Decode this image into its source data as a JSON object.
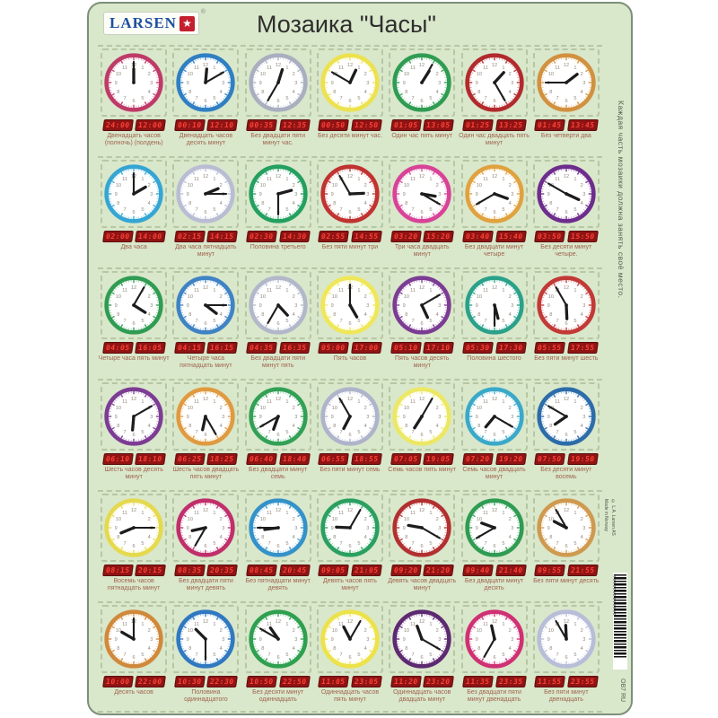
{
  "header": {
    "logo": "LARSEN",
    "logo_star": "★",
    "logo_reg": "®",
    "title": "Мозаика \"Часы\""
  },
  "side_note": "Каждая часть мозаики должна занять своё место.",
  "footer": {
    "credit_line1": "© L.A. Larsen AS",
    "credit_line2": "Made in Norway",
    "barcode_number": "7090052310690",
    "product_code": "OB7 RU"
  },
  "colors": {
    "board_bg": "#d9e7cb",
    "lcd_bg": "#8f1414",
    "lcd_digits": "#ff4136",
    "caption": "#a0644e"
  },
  "grid": {
    "rows": [
      {
        "cells": [
          {
            "time": "12:00",
            "lcd": [
              "24:00",
              "12:00"
            ],
            "caption": "Двенадцать часов (полночь) (полдень)",
            "rim": "#bf3a68"
          },
          {
            "time": "12:10",
            "lcd": [
              "00:10",
              "12:10"
            ],
            "caption": "Двенадцать часов десять минут",
            "rim": "#2f7fc2"
          },
          {
            "time": "12:35",
            "lcd": [
              "00:35",
              "12:35"
            ],
            "caption": "Без двадцати пяти минут час.",
            "rim": "#a9afbf"
          },
          {
            "time": "12:50",
            "lcd": [
              "00:50",
              "12:50"
            ],
            "caption": "Без десяти минут час.",
            "rim": "#ece24f"
          },
          {
            "time": "1:05",
            "lcd": [
              "01:05",
              "13:05"
            ],
            "caption": "Один час пять минут",
            "rim": "#2f9c52"
          },
          {
            "time": "1:25",
            "lcd": [
              "01:25",
              "13:25"
            ],
            "caption": "Один час двадцать пять минут",
            "rim": "#b22a2c"
          },
          {
            "time": "1:45",
            "lcd": [
              "01:45",
              "13:45"
            ],
            "caption": "Без четверти два",
            "rim": "#d2913f"
          }
        ]
      },
      {
        "cells": [
          {
            "time": "2:00",
            "lcd": [
              "02:00",
              "14:00"
            ],
            "caption": "Два часа",
            "rim": "#35a6d4"
          },
          {
            "time": "2:15",
            "lcd": [
              "02:15",
              "14:15"
            ],
            "caption": "Два часа пятнадцать минут",
            "rim": "#b9bdd3"
          },
          {
            "time": "2:30",
            "lcd": [
              "02:30",
              "14:30"
            ],
            "caption": "Половина третьего",
            "rim": "#23a05f"
          },
          {
            "time": "2:55",
            "lcd": [
              "02:55",
              "14:55"
            ],
            "caption": "Без пяти минут три",
            "rim": "#c03331"
          },
          {
            "time": "3:20",
            "lcd": [
              "03:20",
              "15:20"
            ],
            "caption": "Три часа двадцать минут",
            "rim": "#d84397"
          },
          {
            "time": "3:40",
            "lcd": [
              "03:40",
              "15:40"
            ],
            "caption": "Без двадцати минут четыре",
            "rim": "#e0a23e"
          },
          {
            "time": "3:50",
            "lcd": [
              "03:50",
              "15:50"
            ],
            "caption": "Без десяти минут четыре.",
            "rim": "#6d2d8d"
          }
        ]
      },
      {
        "cells": [
          {
            "time": "4:05",
            "lcd": [
              "04:05",
              "16:05"
            ],
            "caption": "Четыре часа пять минут",
            "rim": "#2f9c52"
          },
          {
            "time": "4:15",
            "lcd": [
              "04:15",
              "16:15"
            ],
            "caption": "Четыре часа пятнадцать минут",
            "rim": "#3f83c4"
          },
          {
            "time": "4:35",
            "lcd": [
              "04:35",
              "16:35"
            ],
            "caption": "Без двадцати пяти минут пять",
            "rim": "#b2b8c9"
          },
          {
            "time": "5:00",
            "lcd": [
              "05:00",
              "17:00"
            ],
            "caption": "Пять часов",
            "rim": "#efe759"
          },
          {
            "time": "5:10",
            "lcd": [
              "05:10",
              "17:10"
            ],
            "caption": "Пять часов десять минут",
            "rim": "#7c3c93"
          },
          {
            "time": "5:30",
            "lcd": [
              "05:30",
              "17:30"
            ],
            "caption": "Половина шестого",
            "rim": "#2aa189"
          },
          {
            "time": "5:55",
            "lcd": [
              "05:55",
              "17:55"
            ],
            "caption": "Без пяти минут шесть",
            "rim": "#c23936"
          }
        ]
      },
      {
        "cells": [
          {
            "time": "6:10",
            "lcd": [
              "06:10",
              "18:10"
            ],
            "caption": "Шесть часов десять минут",
            "rim": "#7c3c93"
          },
          {
            "time": "6:25",
            "lcd": [
              "06:25",
              "18:25"
            ],
            "caption": "Шесть часов двадцать пять минут",
            "rim": "#e09a40"
          },
          {
            "time": "6:40",
            "lcd": [
              "06:40",
              "18:40"
            ],
            "caption": "Без двадцати минут семь",
            "rim": "#32a055"
          },
          {
            "time": "6:55",
            "lcd": [
              "06:55",
              "18:55"
            ],
            "caption": "Без пяти минут семь",
            "rim": "#aeb4ca"
          },
          {
            "time": "7:05",
            "lcd": [
              "07:05",
              "19:05"
            ],
            "caption": "Семь часов пять минут",
            "rim": "#ece864"
          },
          {
            "time": "7:20",
            "lcd": [
              "07:20",
              "19:20"
            ],
            "caption": "Семь часов двадцать минут",
            "rim": "#3aa9c9"
          },
          {
            "time": "7:50",
            "lcd": [
              "07:50",
              "19:50"
            ],
            "caption": "Без десяти минут восемь",
            "rim": "#2c6ca9"
          }
        ]
      },
      {
        "cells": [
          {
            "time": "8:15",
            "lcd": [
              "08:15",
              "20:15"
            ],
            "caption": "Восемь часов пятнадцать минут",
            "rim": "#e5d94e"
          },
          {
            "time": "8:35",
            "lcd": [
              "08:35",
              "20:35"
            ],
            "caption": "Без двадцати пяти минут девять",
            "rim": "#c02f6b"
          },
          {
            "time": "8:45",
            "lcd": [
              "08:45",
              "20:45"
            ],
            "caption": "Без пятнадцати минут девять",
            "rim": "#3492c9"
          },
          {
            "time": "9:05",
            "lcd": [
              "09:05",
              "21:05"
            ],
            "caption": "Девять часов пять минут",
            "rim": "#2aa060"
          },
          {
            "time": "9:20",
            "lcd": [
              "09:20",
              "21:20"
            ],
            "caption": "Девять часов двадцать минут",
            "rim": "#b23030"
          },
          {
            "time": "9:40",
            "lcd": [
              "09:40",
              "21:40"
            ],
            "caption": "Без двадцати минут десять",
            "rim": "#2f9c52"
          },
          {
            "time": "9:55",
            "lcd": [
              "09:55",
              "21:55"
            ],
            "caption": "Без пяти минут десять",
            "rim": "#cf9a4f"
          }
        ]
      },
      {
        "cells": [
          {
            "time": "10:00",
            "lcd": [
              "10:00",
              "22:00"
            ],
            "caption": "Десять часов",
            "rim": "#d0893b"
          },
          {
            "time": "10:30",
            "lcd": [
              "10:30",
              "22:30"
            ],
            "caption": "Половина одиннадцатого",
            "rim": "#3079c1"
          },
          {
            "time": "10:50",
            "lcd": [
              "10:50",
              "22:50"
            ],
            "caption": "Без десяти минут одиннадцать",
            "rim": "#2fa050"
          },
          {
            "time": "11:05",
            "lcd": [
              "11:05",
              "23:05"
            ],
            "caption": "Одиннадцать часов пять минут",
            "rim": "#ece24a"
          },
          {
            "time": "11:20",
            "lcd": [
              "11:20",
              "23:20"
            ],
            "caption": "Одиннадцать часов двадцать минут",
            "rim": "#5d2a71"
          },
          {
            "time": "11:35",
            "lcd": [
              "11:35",
              "23:35"
            ],
            "caption": "Без двадцати пяти минут двенадцать",
            "rim": "#cf3173"
          },
          {
            "time": "11:55",
            "lcd": [
              "11:55",
              "23:55"
            ],
            "caption": "Без пяти минут двенадцать",
            "rim": "#b8bdd8"
          }
        ]
      }
    ]
  }
}
